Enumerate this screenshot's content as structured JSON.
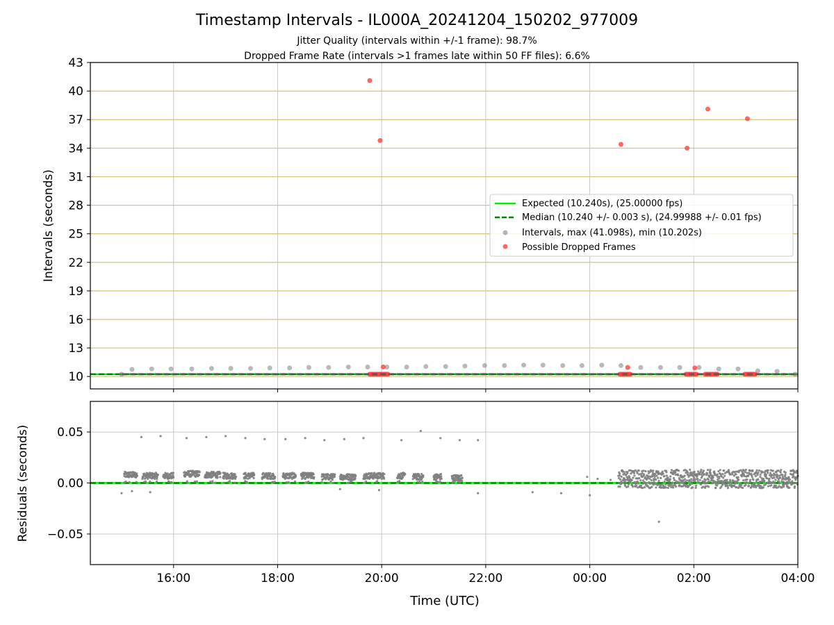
{
  "chart_data": [
    {
      "type": "scatter",
      "title": "Timestamp Intervals - IL000A_20241204_150202_977009",
      "subtitle_lines": [
        "Jitter Quality (intervals within +/-1 frame): 98.7%",
        "Dropped Frame Rate (intervals >1 frames late within 50 FF files): 6.6%"
      ],
      "xlabel": "",
      "ylabel": "Intervals (seconds)",
      "x_unit": "hours since 00:00 UTC (2024-12-04)",
      "xlim": [
        14.4,
        28.0
      ],
      "ylim": [
        8.7,
        43
      ],
      "yticks": [
        10,
        13,
        16,
        19,
        22,
        25,
        28,
        31,
        34,
        37,
        40,
        43
      ],
      "xticks": [
        16,
        18,
        20,
        22,
        24,
        26,
        28
      ],
      "xtick_labels": [
        "16:00",
        "18:00",
        "20:00",
        "22:00",
        "00:00",
        "02:00",
        "04:00"
      ],
      "grid": true,
      "legend_placement": "center-right",
      "series": [
        {
          "name": "Expected (10.240s), (25.00000 fps)",
          "kind": "hline",
          "y": 10.24,
          "color": "#00ee00",
          "style": "solid"
        },
        {
          "name": "Median (10.240 +/- 0.003 s), (24.99988 +/- 0.01 fps)",
          "kind": "hline",
          "y": 10.24,
          "color": "#008000",
          "style": "dashed"
        },
        {
          "name": "Intervals, max (41.098s), min (10.202s)",
          "kind": "scatter",
          "color": "#808080",
          "points": [
            [
              15.0,
              10.24
            ],
            [
              15.2,
              10.75
            ],
            [
              15.58,
              10.8
            ],
            [
              15.95,
              10.8
            ],
            [
              16.35,
              10.8
            ],
            [
              16.73,
              10.85
            ],
            [
              17.1,
              10.85
            ],
            [
              17.48,
              10.85
            ],
            [
              17.85,
              10.9
            ],
            [
              18.23,
              10.9
            ],
            [
              18.6,
              10.95
            ],
            [
              18.98,
              10.95
            ],
            [
              19.36,
              11.0
            ],
            [
              19.73,
              11.0
            ],
            [
              20.1,
              11.0
            ],
            [
              20.48,
              11.0
            ],
            [
              20.85,
              11.05
            ],
            [
              21.23,
              11.05
            ],
            [
              21.6,
              11.1
            ],
            [
              21.98,
              11.15
            ],
            [
              22.36,
              11.15
            ],
            [
              22.73,
              11.2
            ],
            [
              23.1,
              11.2
            ],
            [
              23.48,
              11.15
            ],
            [
              23.85,
              11.15
            ],
            [
              24.23,
              11.2
            ],
            [
              24.6,
              11.15
            ],
            [
              24.98,
              10.95
            ],
            [
              25.36,
              10.95
            ],
            [
              25.73,
              10.95
            ],
            [
              26.1,
              10.95
            ],
            [
              26.48,
              10.8
            ],
            [
              26.85,
              10.8
            ],
            [
              27.23,
              10.6
            ],
            [
              27.6,
              10.55
            ],
            [
              27.95,
              10.24
            ]
          ]
        },
        {
          "name": "Possible Dropped Frames",
          "kind": "scatter",
          "color": "#ff4040",
          "points": [
            [
              19.77,
              41.1
            ],
            [
              19.97,
              34.8
            ],
            [
              20.03,
              11.0
            ],
            [
              24.6,
              34.4
            ],
            [
              24.73,
              10.95
            ],
            [
              25.87,
              34.0
            ],
            [
              26.02,
              10.9
            ],
            [
              26.27,
              38.1
            ],
            [
              27.03,
              37.1
            ]
          ],
          "clusters": [
            [
              19.77,
              20.12,
              10.24
            ],
            [
              24.58,
              24.78,
              10.24
            ],
            [
              25.85,
              26.05,
              10.24
            ],
            [
              26.22,
              26.45,
              10.24
            ],
            [
              26.98,
              27.18,
              10.24
            ]
          ]
        }
      ]
    },
    {
      "type": "scatter",
      "title": "",
      "xlabel": "Time (UTC)",
      "ylabel": "Residuals (seconds)",
      "xlim": [
        14.4,
        28.0
      ],
      "ylim": [
        -0.08,
        0.08
      ],
      "yticks": [
        -0.05,
        0.0,
        0.05
      ],
      "ytick_labels": [
        "−0.05",
        "0.00",
        "0.05"
      ],
      "xticks": [
        16,
        18,
        20,
        22,
        24,
        26,
        28
      ],
      "xtick_labels": [
        "16:00",
        "18:00",
        "20:00",
        "22:00",
        "00:00",
        "02:00",
        "04:00"
      ],
      "grid": true,
      "series": [
        {
          "name": "",
          "kind": "hline",
          "y": 0.0,
          "color": "#00ee00",
          "style": "solid"
        },
        {
          "name": "",
          "kind": "hline",
          "y": 0.0,
          "color": "#008000",
          "style": "dashed"
        },
        {
          "name": "",
          "kind": "scatter",
          "color": "#808080",
          "outliers": [
            [
              15.38,
              0.045
            ],
            [
              15.75,
              0.046
            ],
            [
              16.25,
              0.044
            ],
            [
              16.63,
              0.045
            ],
            [
              17.0,
              0.046
            ],
            [
              17.38,
              0.044
            ],
            [
              17.75,
              0.043
            ],
            [
              18.15,
              0.043
            ],
            [
              18.53,
              0.044
            ],
            [
              18.9,
              0.042
            ],
            [
              19.28,
              0.043
            ],
            [
              19.65,
              0.044
            ],
            [
              20.38,
              0.042
            ],
            [
              20.75,
              0.051
            ],
            [
              21.13,
              0.044
            ],
            [
              21.5,
              0.042
            ],
            [
              21.85,
              0.042
            ],
            [
              25.33,
              -0.038
            ],
            [
              15.0,
              -0.01
            ],
            [
              15.2,
              -0.008
            ],
            [
              15.55,
              -0.009
            ],
            [
              19.2,
              -0.006
            ],
            [
              19.95,
              -0.007
            ],
            [
              21.85,
              -0.01
            ],
            [
              22.9,
              -0.009
            ],
            [
              23.45,
              -0.01
            ],
            [
              24.0,
              -0.012
            ],
            [
              24.4,
              0.003
            ],
            [
              23.95,
              0.006
            ],
            [
              24.15,
              0.004
            ]
          ],
          "clusters": [
            [
              15.05,
              15.3,
              0.008
            ],
            [
              15.4,
              15.7,
              0.007
            ],
            [
              15.8,
              16.0,
              0.007
            ],
            [
              16.2,
              16.5,
              0.009
            ],
            [
              16.6,
              16.9,
              0.008
            ],
            [
              16.95,
              17.2,
              0.007
            ],
            [
              17.35,
              17.55,
              0.007
            ],
            [
              17.7,
              17.95,
              0.007
            ],
            [
              18.1,
              18.35,
              0.007
            ],
            [
              18.45,
              18.7,
              0.007
            ],
            [
              18.85,
              19.1,
              0.006
            ],
            [
              19.2,
              19.5,
              0.006
            ],
            [
              19.65,
              20.05,
              0.007
            ],
            [
              20.3,
              20.45,
              0.007
            ],
            [
              20.6,
              20.8,
              0.006
            ],
            [
              21.0,
              21.15,
              0.006
            ],
            [
              21.35,
              21.55,
              0.005
            ],
            [
              24.55,
              28.0,
              0.004
            ]
          ]
        }
      ]
    }
  ]
}
